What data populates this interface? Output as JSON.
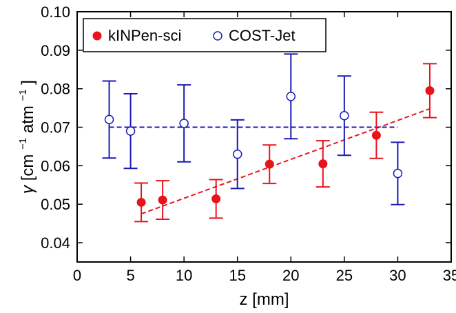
{
  "chart_data": {
    "type": "scatter",
    "xlabel": "z [mm]",
    "ylabel_parts": {
      "gamma": "γ",
      "open": " [cm",
      "exp": "−1",
      "mid": "atm",
      "close": "]"
    },
    "xlim": [
      0,
      35
    ],
    "ylim": [
      0.035,
      0.1
    ],
    "xticks": [
      "0",
      "5",
      "10",
      "15",
      "20",
      "25",
      "30",
      "35"
    ],
    "yticks": [
      "0.04",
      "0.05",
      "0.06",
      "0.07",
      "0.08",
      "0.09",
      "0.10"
    ],
    "legend_placement": "top-left",
    "series": [
      {
        "name": "kINPen-sci",
        "color": "#e8141b",
        "marker": "filled-circle",
        "points": [
          {
            "x": 6,
            "y": 0.0505,
            "err": 0.005
          },
          {
            "x": 8,
            "y": 0.0511,
            "err": 0.005
          },
          {
            "x": 13,
            "y": 0.0514,
            "err": 0.005
          },
          {
            "x": 18,
            "y": 0.0604,
            "err": 0.005
          },
          {
            "x": 23,
            "y": 0.0605,
            "err": 0.006
          },
          {
            "x": 28,
            "y": 0.0679,
            "err": 0.006
          },
          {
            "x": 33,
            "y": 0.0795,
            "err": 0.007
          }
        ],
        "fit": {
          "style": "dashed",
          "x": [
            6,
            33
          ],
          "y": [
            0.0475,
            0.0748
          ]
        }
      },
      {
        "name": "COST-Jet",
        "color": "#1a1ab4",
        "marker": "open-circle",
        "points": [
          {
            "x": 3,
            "y": 0.072,
            "err": 0.01
          },
          {
            "x": 5,
            "y": 0.069,
            "err": 0.0097
          },
          {
            "x": 10,
            "y": 0.071,
            "err": 0.01
          },
          {
            "x": 15,
            "y": 0.063,
            "err": 0.0089
          },
          {
            "x": 20,
            "y": 0.078,
            "err": 0.011
          },
          {
            "x": 25,
            "y": 0.073,
            "err": 0.0103
          },
          {
            "x": 30,
            "y": 0.058,
            "err": 0.0081
          }
        ],
        "fit": {
          "style": "dashed",
          "x": [
            3,
            30
          ],
          "y": [
            0.07,
            0.07
          ]
        }
      }
    ]
  }
}
